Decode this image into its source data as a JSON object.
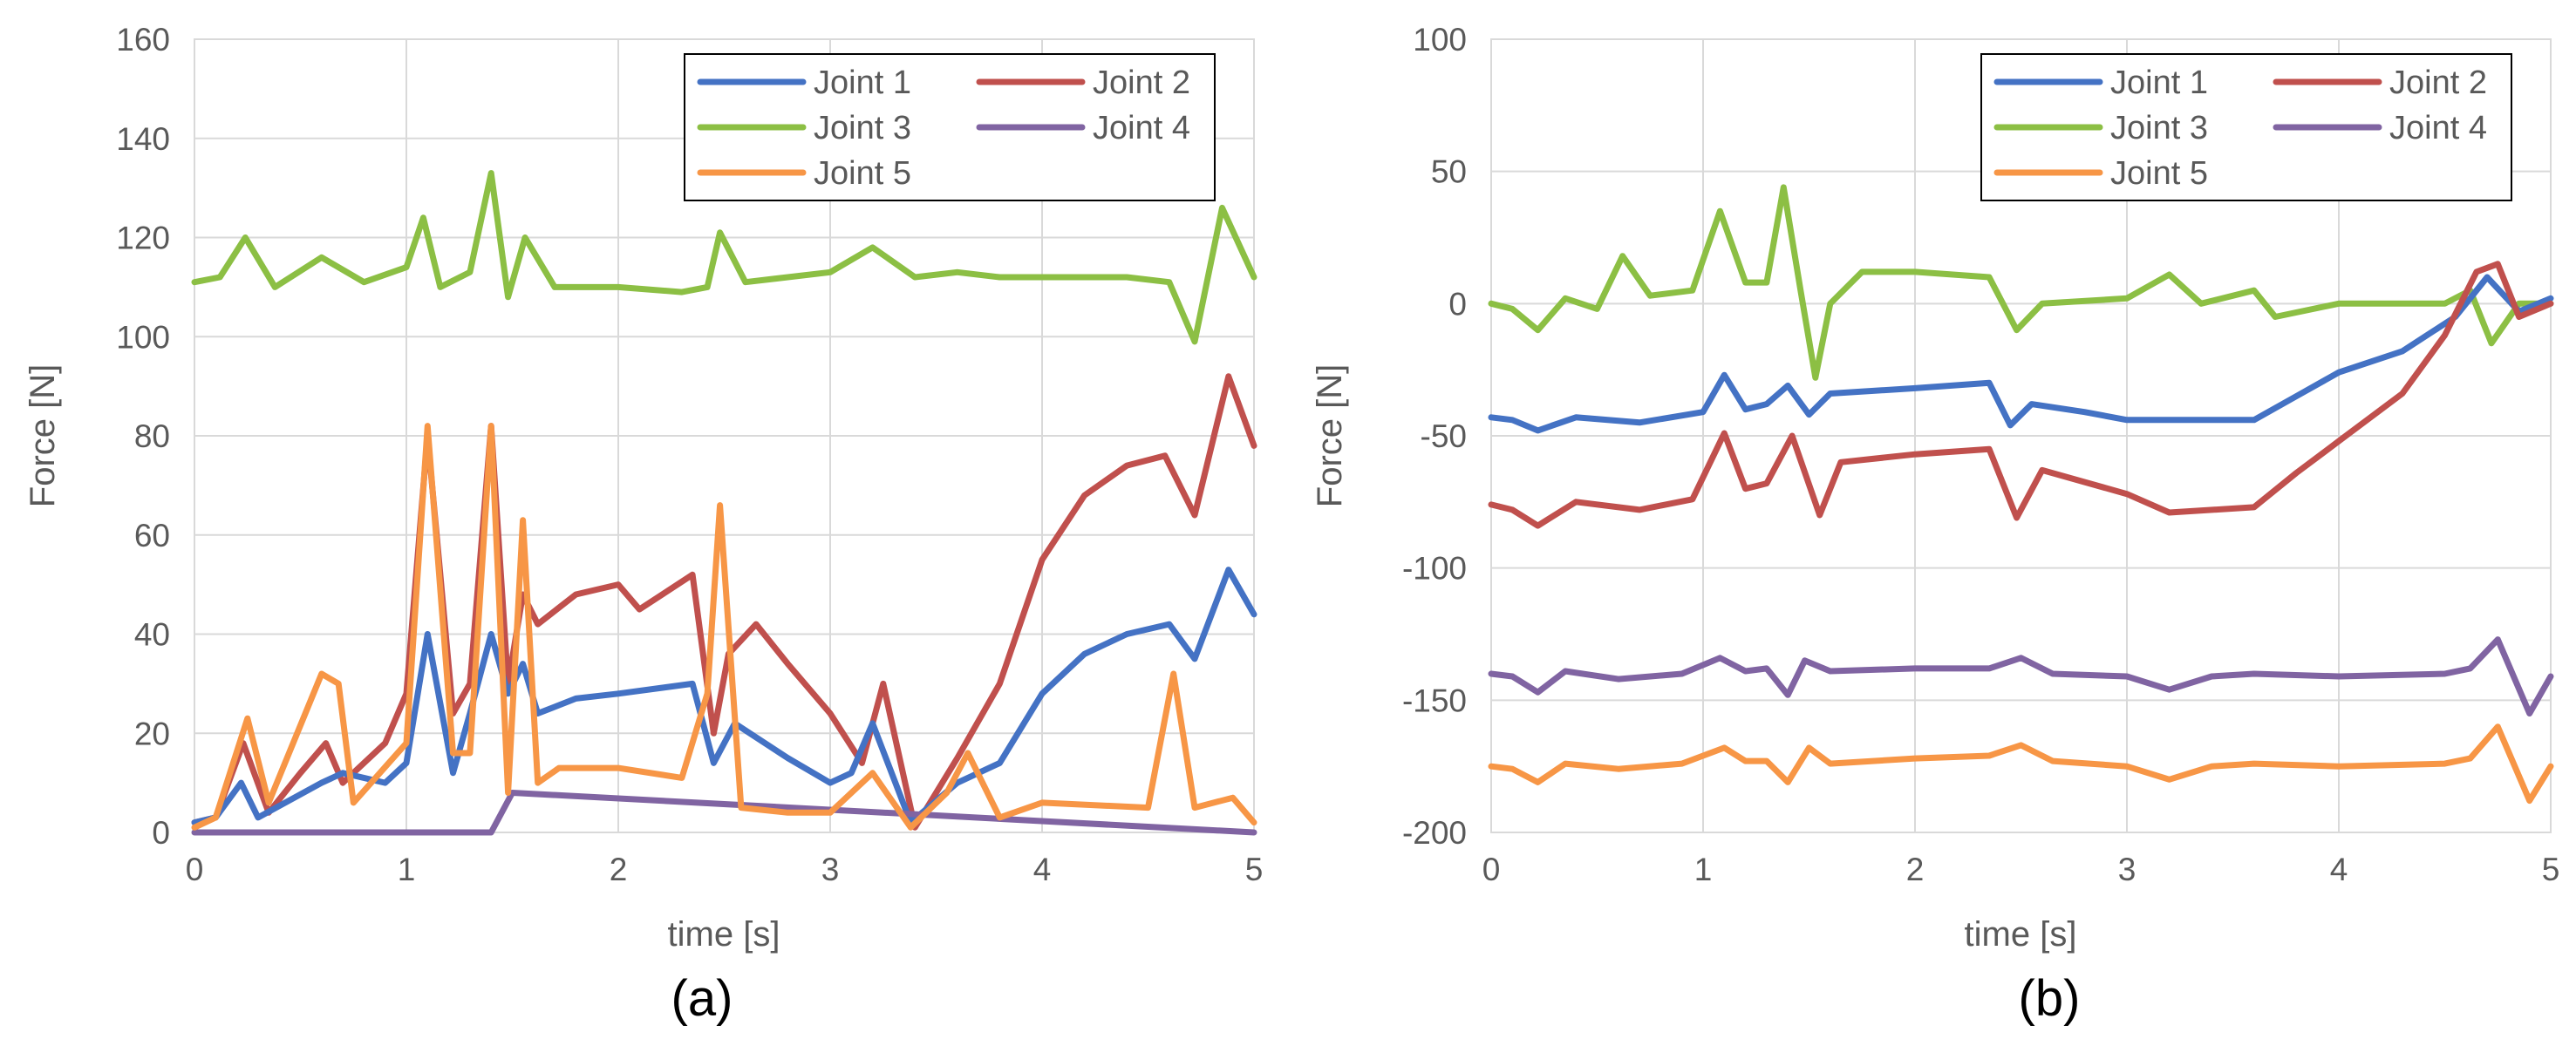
{
  "chart_data": [
    {
      "type": "line",
      "panel_label": "(a)",
      "xlabel": "time [s]",
      "ylabel": "Force [N]",
      "xlim": [
        0,
        5
      ],
      "ylim": [
        0,
        160
      ],
      "xticks": [
        0,
        1,
        2,
        3,
        4,
        5
      ],
      "yticks": [
        0,
        20,
        40,
        60,
        80,
        100,
        120,
        140,
        160
      ],
      "grid": true,
      "legend_position": "top-right",
      "series": [
        {
          "name": "Joint 3",
          "color": "#8CBF44",
          "x": [
            0,
            0.12,
            0.24,
            0.38,
            0.6,
            0.8,
            1.0,
            1.08,
            1.16,
            1.3,
            1.4,
            1.48,
            1.56,
            1.7,
            2.0,
            2.3,
            2.42,
            2.48,
            2.6,
            3.0,
            3.2,
            3.4,
            3.6,
            3.8,
            4.0,
            4.4,
            4.6,
            4.72,
            4.85,
            5.0
          ],
          "values": [
            111,
            112,
            120,
            110,
            116,
            111,
            114,
            124,
            110,
            113,
            133,
            108,
            120,
            110,
            110,
            109,
            110,
            121,
            111,
            113,
            118,
            112,
            113,
            112,
            112,
            112,
            111,
            99,
            126,
            112
          ]
        },
        {
          "name": "Joint 2",
          "color": "#C0504D",
          "x": [
            0,
            0.1,
            0.23,
            0.35,
            0.5,
            0.62,
            0.7,
            0.9,
            1.0,
            1.1,
            1.22,
            1.3,
            1.4,
            1.48,
            1.55,
            1.62,
            1.8,
            2.0,
            2.1,
            2.35,
            2.45,
            2.52,
            2.65,
            2.8,
            3.0,
            3.15,
            3.25,
            3.4,
            3.6,
            3.8,
            4.0,
            4.2,
            4.4,
            4.58,
            4.72,
            4.88,
            5.0
          ],
          "values": [
            2,
            3,
            18,
            4,
            12,
            18,
            10,
            18,
            28,
            80,
            24,
            30,
            82,
            30,
            48,
            42,
            48,
            50,
            45,
            52,
            20,
            36,
            42,
            34,
            24,
            14,
            30,
            1,
            15,
            30,
            55,
            68,
            74,
            76,
            64,
            92,
            78
          ]
        },
        {
          "name": "Joint 1",
          "color": "#4472C4",
          "x": [
            0,
            0.1,
            0.22,
            0.3,
            0.6,
            0.7,
            0.9,
            1.0,
            1.1,
            1.22,
            1.3,
            1.4,
            1.48,
            1.55,
            1.62,
            1.8,
            2.0,
            2.35,
            2.45,
            2.55,
            2.8,
            3.0,
            3.1,
            3.2,
            3.38,
            3.6,
            3.8,
            4.0,
            4.2,
            4.4,
            4.6,
            4.72,
            4.88,
            5.0
          ],
          "values": [
            2,
            3,
            10,
            3,
            10,
            12,
            10,
            14,
            40,
            12,
            24,
            40,
            28,
            34,
            24,
            27,
            28,
            30,
            14,
            22,
            15,
            10,
            12,
            22,
            2,
            10,
            14,
            28,
            36,
            40,
            42,
            35,
            53,
            44
          ]
        },
        {
          "name": "Joint 4",
          "color": "#8064A2",
          "x": [
            0,
            1.4,
            1.5,
            5.0
          ],
          "values": [
            0,
            0,
            8,
            0
          ]
        },
        {
          "name": "Joint 5",
          "color": "#F79646",
          "x": [
            0,
            0.1,
            0.25,
            0.35,
            0.6,
            0.68,
            0.75,
            1.0,
            1.1,
            1.22,
            1.3,
            1.4,
            1.48,
            1.55,
            1.62,
            1.72,
            2.0,
            2.3,
            2.42,
            2.48,
            2.58,
            2.8,
            3.0,
            3.2,
            3.38,
            3.55,
            3.65,
            3.8,
            4.0,
            4.5,
            4.62,
            4.72,
            4.9,
            5.0
          ],
          "values": [
            1,
            3,
            23,
            6,
            32,
            30,
            6,
            18,
            82,
            16,
            16,
            82,
            8,
            63,
            10,
            13,
            13,
            11,
            28,
            66,
            5,
            4,
            4,
            12,
            1,
            8,
            16,
            3,
            6,
            5,
            32,
            5,
            7,
            2
          ]
        }
      ]
    },
    {
      "type": "line",
      "panel_label": "(b)",
      "xlabel": "time [s]",
      "ylabel": "Force [N]",
      "xlim": [
        0,
        5
      ],
      "ylim": [
        -200,
        100
      ],
      "xticks": [
        0,
        1,
        2,
        3,
        4,
        5
      ],
      "yticks": [
        -200,
        -150,
        -100,
        -50,
        0,
        50,
        100
      ],
      "grid": true,
      "legend_position": "top-right",
      "series": [
        {
          "name": "Joint 3",
          "color": "#8CBF44",
          "x": [
            0,
            0.1,
            0.22,
            0.35,
            0.5,
            0.62,
            0.75,
            0.95,
            1.08,
            1.2,
            1.3,
            1.38,
            1.46,
            1.53,
            1.6,
            1.75,
            2.0,
            2.35,
            2.48,
            2.6,
            3.0,
            3.2,
            3.35,
            3.6,
            3.7,
            4.0,
            4.5,
            4.62,
            4.72,
            4.85,
            5.0
          ],
          "values": [
            0,
            -2,
            -10,
            2,
            -2,
            18,
            3,
            5,
            35,
            8,
            8,
            44,
            5,
            -28,
            0,
            12,
            12,
            10,
            -10,
            0,
            2,
            11,
            0,
            5,
            -5,
            0,
            0,
            5,
            -15,
            0,
            0
          ]
        },
        {
          "name": "Joint 1",
          "color": "#4472C4",
          "x": [
            0,
            0.1,
            0.22,
            0.4,
            0.7,
            1.0,
            1.1,
            1.2,
            1.3,
            1.4,
            1.5,
            1.6,
            2.0,
            2.35,
            2.45,
            2.55,
            2.8,
            3.0,
            3.2,
            3.6,
            3.8,
            4.0,
            4.3,
            4.55,
            4.7,
            4.85,
            5.0
          ],
          "values": [
            -43,
            -44,
            -48,
            -43,
            -45,
            -41,
            -27,
            -40,
            -38,
            -31,
            -42,
            -34,
            -32,
            -30,
            -46,
            -38,
            -41,
            -44,
            -44,
            -44,
            -35,
            -26,
            -18,
            -5,
            10,
            -3,
            2
          ]
        },
        {
          "name": "Joint 2",
          "color": "#C0504D",
          "x": [
            0,
            0.1,
            0.22,
            0.4,
            0.7,
            0.95,
            1.1,
            1.2,
            1.3,
            1.42,
            1.55,
            1.65,
            2.0,
            2.35,
            2.48,
            2.6,
            3.0,
            3.2,
            3.6,
            3.8,
            4.0,
            4.3,
            4.5,
            4.65,
            4.75,
            4.85,
            5.0
          ],
          "values": [
            -76,
            -78,
            -84,
            -75,
            -78,
            -74,
            -49,
            -70,
            -68,
            -50,
            -80,
            -60,
            -57,
            -55,
            -81,
            -63,
            -72,
            -79,
            -77,
            -64,
            -52,
            -34,
            -12,
            12,
            15,
            -5,
            0
          ]
        },
        {
          "name": "Joint 4",
          "color": "#8064A2",
          "x": [
            0,
            0.1,
            0.22,
            0.35,
            0.6,
            0.9,
            1.08,
            1.2,
            1.3,
            1.4,
            1.48,
            1.6,
            2.0,
            2.35,
            2.5,
            2.65,
            3.0,
            3.2,
            3.4,
            3.6,
            4.0,
            4.5,
            4.62,
            4.75,
            4.9,
            5.0
          ],
          "values": [
            -140,
            -141,
            -147,
            -139,
            -142,
            -140,
            -134,
            -139,
            -138,
            -148,
            -135,
            -139,
            -138,
            -138,
            -134,
            -140,
            -141,
            -146,
            -141,
            -140,
            -141,
            -140,
            -138,
            -127,
            -155,
            -141
          ]
        },
        {
          "name": "Joint 5",
          "color": "#F79646",
          "x": [
            0,
            0.1,
            0.22,
            0.35,
            0.6,
            0.9,
            1.1,
            1.2,
            1.3,
            1.4,
            1.5,
            1.6,
            2.0,
            2.35,
            2.5,
            2.65,
            3.0,
            3.2,
            3.4,
            3.6,
            4.0,
            4.5,
            4.62,
            4.75,
            4.9,
            5.0
          ],
          "values": [
            -175,
            -176,
            -181,
            -174,
            -176,
            -174,
            -168,
            -173,
            -173,
            -181,
            -168,
            -174,
            -172,
            -171,
            -167,
            -173,
            -175,
            -180,
            -175,
            -174,
            -175,
            -174,
            -172,
            -160,
            -188,
            -175
          ]
        }
      ]
    }
  ]
}
